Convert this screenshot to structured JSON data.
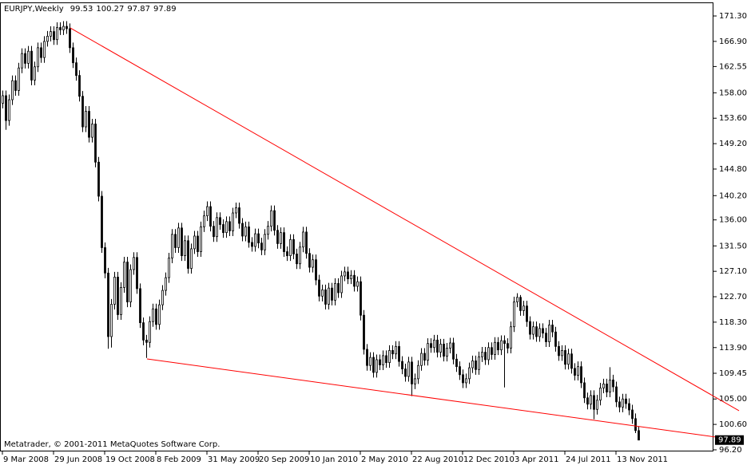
{
  "chart_data": {
    "type": "candlestick",
    "title": "EURJPY,Weekly",
    "annotation": "Metatrader, © 2001-2011 MetaQuotes Software Corp.",
    "open": [
      156.2,
      157.5,
      153.2,
      156.8,
      160.1,
      158.4,
      162.3,
      164.8,
      163.1,
      165.2,
      160.2,
      162.5,
      165.8,
      164.1,
      166.9,
      167.8,
      168.6,
      167.2,
      169.3,
      168.9,
      169.5,
      169.1,
      165.8,
      163.2,
      161.0,
      157.4,
      152.1,
      154.8,
      150.3,
      152.6,
      146.0,
      140.1,
      131.2,
      126.8,
      115.8,
      121.4,
      126.1,
      119.6,
      124.3,
      128.7,
      121.8,
      127.4,
      129.5,
      124.1,
      118.2,
      115.2,
      114.8,
      118.4,
      120.6,
      117.9,
      121.3,
      123.8,
      126.0,
      129.4,
      133.5,
      131.2,
      134.6,
      129.8,
      132.4,
      127.6,
      131.0,
      133.2,
      130.5,
      134.8,
      136.7,
      138.3,
      134.9,
      133.1,
      136.4,
      135.2,
      133.8,
      135.7,
      134.1,
      137.2,
      138.1,
      135.4,
      133.2,
      134.8,
      132.1,
      131.4,
      133.6,
      132.0,
      130.8,
      133.5,
      134.9,
      137.6,
      134.2,
      131.9,
      133.8,
      130.5,
      129.8,
      132.6,
      130.1,
      128.4,
      131.3,
      133.9,
      130.2,
      127.8,
      129.1,
      125.6,
      122.8,
      123.9,
      121.4,
      124.2,
      122.1,
      125.0,
      123.4,
      126.3,
      127.0,
      125.8,
      126.4,
      124.5,
      125.3,
      119.5,
      113.6,
      110.8,
      112.2,
      109.6,
      111.8,
      110.9,
      112.5,
      111.3,
      113.4,
      112.8,
      114.1,
      111.5,
      110.2,
      108.9,
      111.4,
      107.6,
      108.5,
      110.8,
      112.9,
      111.7,
      114.6,
      113.9,
      115.2,
      113.1,
      114.5,
      112.4,
      113.8,
      114.7,
      111.9,
      110.6,
      109.2,
      107.8,
      108.5,
      110.4,
      111.6,
      110.1,
      112.3,
      113.1,
      111.8,
      113.9,
      112.7,
      114.8,
      113.5,
      115.1,
      114.6,
      113.8,
      117.5,
      121.8,
      122.6,
      120.3,
      121.1,
      118.4,
      116.2,
      117.5,
      115.8,
      117.2,
      116.4,
      114.9,
      117.8,
      116.6,
      114.1,
      112.5,
      113.4,
      111.0,
      112.8,
      110.3,
      109.1,
      110.6,
      107.8,
      105.2,
      104.1,
      105.6,
      103.2,
      104.8,
      106.9,
      107.6,
      106.2,
      108.3,
      107.1,
      104.5,
      103.6,
      105.0,
      104.2,
      103.1,
      101.6,
      99.53
    ],
    "high": [
      158.4,
      158.4,
      157.7,
      161.0,
      161.0,
      163.2,
      165.7,
      165.7,
      166.1,
      166.1,
      163.4,
      166.7,
      166.7,
      167.8,
      168.7,
      169.5,
      169.5,
      170.2,
      170.2,
      170.4,
      170.4,
      170.0,
      166.7,
      164.1,
      161.9,
      158.3,
      155.7,
      155.7,
      153.5,
      153.5,
      146.9,
      141.0,
      132.1,
      127.7,
      122.3,
      127.0,
      127.0,
      125.2,
      129.6,
      129.6,
      128.3,
      130.4,
      130.4,
      125.0,
      119.1,
      116.1,
      119.3,
      121.5,
      121.5,
      122.2,
      124.7,
      126.9,
      130.3,
      134.4,
      134.4,
      135.5,
      135.5,
      133.3,
      133.3,
      131.9,
      134.1,
      134.1,
      135.7,
      137.6,
      139.2,
      139.2,
      135.8,
      137.3,
      137.3,
      136.1,
      136.6,
      136.6,
      138.1,
      139.0,
      139.0,
      136.3,
      135.7,
      135.7,
      133.0,
      134.5,
      134.5,
      132.9,
      134.4,
      135.8,
      138.5,
      138.5,
      135.1,
      134.7,
      134.7,
      131.4,
      133.5,
      133.5,
      131.0,
      132.2,
      134.8,
      134.8,
      131.1,
      130.0,
      130.0,
      126.5,
      124.8,
      124.8,
      125.1,
      125.1,
      125.9,
      125.9,
      127.2,
      127.9,
      127.9,
      127.3,
      127.3,
      126.2,
      126.2,
      120.4,
      114.5,
      113.1,
      113.1,
      112.7,
      112.7,
      113.4,
      113.4,
      114.3,
      114.3,
      115.0,
      115.0,
      112.4,
      111.1,
      112.3,
      112.3,
      109.4,
      111.7,
      113.8,
      113.8,
      115.5,
      115.5,
      116.1,
      116.1,
      115.4,
      115.4,
      114.7,
      115.6,
      115.6,
      112.8,
      111.5,
      110.1,
      109.4,
      111.3,
      112.5,
      112.5,
      113.2,
      114.0,
      114.0,
      114.8,
      114.8,
      115.7,
      115.7,
      116.0,
      116.0,
      115.5,
      118.4,
      122.7,
      123.3,
      123.0,
      122.0,
      122.0,
      119.3,
      118.4,
      118.4,
      118.1,
      118.1,
      117.3,
      118.7,
      118.7,
      117.5,
      115.0,
      114.3,
      114.3,
      113.7,
      113.7,
      111.2,
      111.5,
      111.5,
      108.7,
      106.1,
      106.5,
      106.5,
      105.7,
      107.8,
      108.5,
      108.5,
      110.5,
      109.2,
      108.0,
      105.4,
      105.9,
      105.9,
      105.1,
      104.0,
      102.5,
      100.27
    ],
    "low": [
      155.3,
      151.6,
      152.3,
      155.9,
      157.5,
      157.5,
      161.4,
      162.2,
      162.2,
      159.3,
      159.3,
      161.6,
      163.2,
      163.2,
      166.0,
      166.9,
      166.3,
      166.3,
      168.0,
      168.0,
      168.2,
      164.9,
      162.3,
      160.1,
      156.5,
      151.2,
      151.2,
      149.4,
      149.4,
      145.1,
      139.2,
      130.3,
      125.9,
      113.7,
      113.9,
      120.5,
      118.7,
      118.7,
      123.4,
      120.9,
      120.9,
      126.5,
      123.2,
      117.3,
      114.3,
      112.1,
      113.9,
      117.5,
      117.0,
      117.0,
      120.4,
      122.9,
      125.1,
      128.5,
      130.3,
      130.3,
      128.9,
      128.9,
      126.7,
      126.7,
      130.1,
      129.6,
      129.6,
      133.9,
      135.8,
      134.0,
      132.2,
      132.2,
      134.3,
      132.9,
      132.9,
      133.2,
      133.2,
      136.3,
      134.5,
      132.3,
      132.3,
      131.2,
      130.5,
      130.5,
      131.1,
      129.9,
      129.9,
      132.6,
      134.0,
      133.3,
      131.0,
      131.0,
      129.6,
      128.9,
      128.9,
      129.2,
      127.5,
      127.5,
      130.4,
      129.3,
      126.9,
      126.9,
      124.7,
      121.9,
      121.9,
      120.5,
      120.5,
      121.2,
      121.2,
      122.5,
      122.5,
      125.4,
      124.9,
      124.9,
      123.6,
      123.6,
      118.6,
      112.7,
      109.9,
      109.9,
      108.7,
      108.7,
      110.0,
      110.0,
      110.4,
      110.4,
      111.9,
      111.9,
      110.6,
      109.3,
      108.0,
      108.0,
      105.5,
      106.7,
      107.6,
      109.9,
      110.8,
      110.8,
      113.0,
      113.0,
      112.2,
      112.2,
      111.5,
      111.5,
      112.9,
      111.0,
      109.7,
      108.3,
      106.9,
      106.9,
      107.6,
      109.5,
      109.2,
      109.2,
      111.4,
      110.9,
      110.9,
      111.8,
      111.8,
      112.6,
      112.6,
      107.0,
      112.9,
      112.9,
      116.6,
      120.9,
      119.4,
      119.4,
      117.5,
      115.3,
      115.3,
      114.9,
      114.9,
      115.5,
      114.0,
      114.0,
      115.7,
      113.2,
      111.6,
      111.6,
      110.1,
      110.1,
      109.4,
      108.2,
      108.2,
      106.9,
      104.3,
      103.2,
      103.2,
      101.5,
      102.3,
      103.9,
      106.0,
      105.3,
      105.3,
      106.2,
      103.6,
      102.7,
      102.7,
      103.3,
      102.2,
      100.7,
      99.1,
      97.87
    ],
    "close": [
      157.5,
      153.2,
      156.8,
      160.1,
      158.4,
      162.3,
      164.8,
      163.1,
      165.2,
      160.2,
      162.5,
      165.8,
      164.1,
      166.9,
      167.8,
      168.6,
      167.2,
      169.3,
      168.9,
      169.5,
      169.1,
      165.8,
      163.2,
      161.0,
      157.4,
      152.1,
      154.8,
      150.3,
      152.6,
      146.0,
      140.1,
      131.2,
      126.8,
      115.8,
      121.4,
      126.1,
      119.6,
      124.3,
      128.7,
      121.8,
      127.4,
      129.5,
      124.1,
      118.2,
      115.2,
      114.8,
      118.4,
      120.6,
      117.9,
      121.3,
      123.8,
      126.0,
      129.4,
      133.5,
      131.2,
      134.6,
      129.8,
      132.4,
      127.6,
      131.0,
      133.2,
      130.5,
      134.8,
      136.7,
      138.3,
      134.9,
      133.1,
      136.4,
      135.2,
      133.8,
      135.7,
      134.1,
      137.2,
      138.1,
      135.4,
      133.2,
      134.8,
      132.1,
      131.4,
      133.6,
      132.0,
      130.8,
      133.5,
      134.9,
      137.6,
      134.2,
      131.9,
      133.8,
      130.5,
      129.8,
      132.6,
      130.1,
      128.4,
      131.3,
      133.9,
      130.2,
      127.8,
      129.1,
      125.6,
      122.8,
      123.9,
      121.4,
      124.2,
      122.1,
      125.0,
      123.4,
      126.3,
      127.0,
      125.8,
      126.4,
      124.5,
      125.3,
      119.5,
      113.6,
      110.8,
      112.2,
      109.6,
      111.8,
      110.9,
      112.5,
      111.3,
      113.4,
      112.8,
      114.1,
      111.5,
      110.2,
      108.9,
      111.4,
      107.6,
      108.5,
      110.8,
      112.9,
      111.7,
      114.6,
      113.9,
      115.2,
      113.1,
      114.5,
      112.4,
      113.8,
      114.7,
      111.9,
      110.6,
      109.2,
      107.8,
      108.5,
      110.4,
      111.6,
      110.1,
      112.3,
      113.1,
      111.8,
      113.9,
      112.7,
      114.8,
      113.5,
      115.1,
      114.6,
      113.8,
      117.5,
      121.8,
      122.6,
      120.3,
      121.1,
      118.4,
      116.2,
      117.5,
      115.8,
      117.2,
      116.4,
      114.9,
      117.8,
      116.6,
      114.1,
      112.5,
      113.4,
      111.0,
      112.8,
      110.3,
      109.1,
      110.6,
      107.8,
      105.2,
      104.1,
      105.6,
      103.2,
      104.8,
      106.9,
      107.6,
      106.2,
      108.3,
      107.1,
      104.5,
      103.6,
      105.0,
      104.2,
      103.1,
      101.6,
      99.53,
      97.89
    ],
    "xlim": [
      -0.75,
      222.5
    ],
    "xticks": [
      {
        "value": 0,
        "label": "9 Mar 2008"
      },
      {
        "value": 16,
        "label": "29 Jun 2008"
      },
      {
        "value": 32,
        "label": "19 Oct 2008"
      },
      {
        "value": 48,
        "label": "8 Feb 2009"
      },
      {
        "value": 64,
        "label": "31 May 2009"
      },
      {
        "value": 80,
        "label": "20 Sep 2009"
      },
      {
        "value": 96,
        "label": "10 Jan 2010"
      },
      {
        "value": 112,
        "label": "2 May 2010"
      },
      {
        "value": 128,
        "label": "22 Aug 2010"
      },
      {
        "value": 144,
        "label": "12 Dec 2010"
      },
      {
        "value": 160,
        "label": "3 Apr 2011"
      },
      {
        "value": 176,
        "label": "24 Jul 2011"
      },
      {
        "value": 192,
        "label": "13 Nov 2011"
      }
    ],
    "ylim": [
      95.92,
      173.65
    ],
    "yticks": [
      {
        "value": 171.3,
        "label": "171.30"
      },
      {
        "value": 166.9,
        "label": "166.90"
      },
      162.55,
      {
        "value": 158.0,
        "label": "158.00"
      },
      {
        "value": 153.6,
        "label": "153.60"
      },
      {
        "value": 149.2,
        "label": "149.20"
      },
      {
        "value": 144.8,
        "label": "144.80"
      },
      {
        "value": 140.2,
        "label": "140.20"
      },
      {
        "value": 136.0,
        "label": "136.00"
      },
      {
        "value": 131.5,
        "label": "131.50"
      },
      {
        "value": 127.1,
        "label": "127.10"
      },
      {
        "value": 122.7,
        "label": "122.70"
      },
      {
        "value": 118.3,
        "label": "118.30"
      },
      {
        "value": 113.9,
        "label": "113.90"
      },
      109.45,
      {
        "value": 105.0,
        "label": "105.00"
      },
      {
        "value": 100.6,
        "label": "100.60"
      },
      {
        "value": 96.2,
        "label": "96.20"
      }
    ],
    "color": "#000000",
    "trendlines": [
      {
        "x": [
          21.25,
          230.5
        ],
        "y": [
          169.23,
          102.97
        ],
        "color": "#ff0000"
      },
      {
        "x": [
          45.25,
          230.5
        ],
        "y": [
          111.94,
          97.86
        ],
        "color": "#ff0000"
      }
    ]
  }
}
